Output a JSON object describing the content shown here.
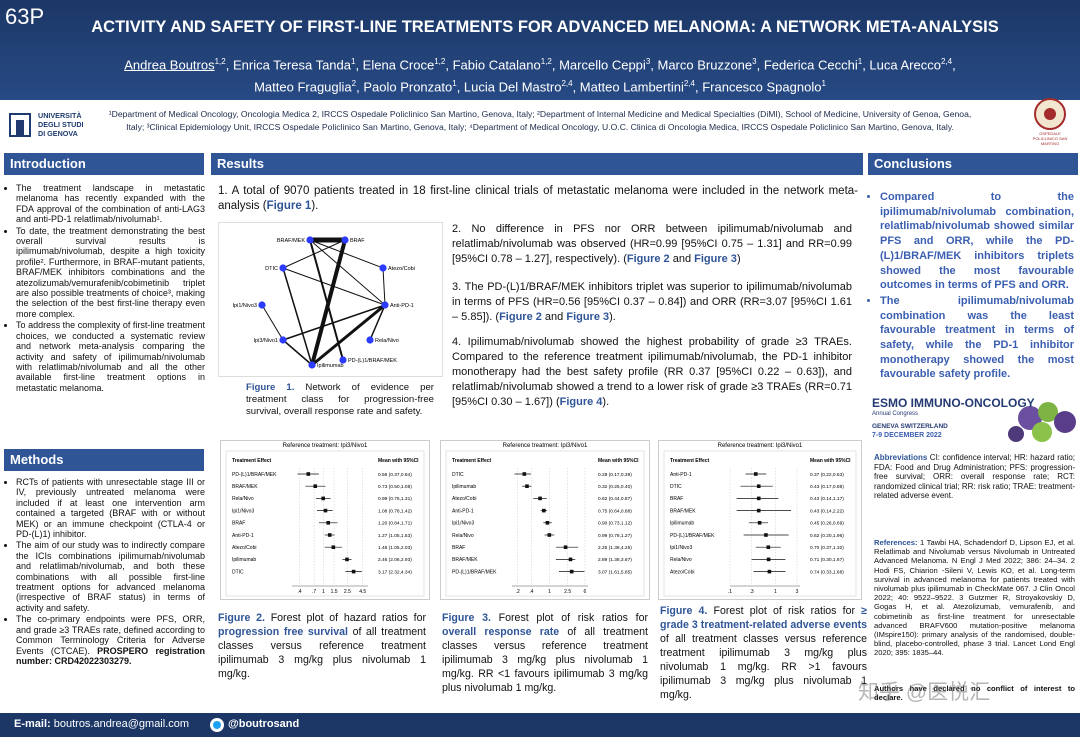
{
  "header": {
    "poster_id": "63P",
    "title": "ACTIVITY AND SAFETY OF FIRST-LINE TREATMENTS FOR ADVANCED MELANOMA: A NETWORK META-ANALYSIS",
    "authors": [
      [
        {
          "text": "Andrea Boutros",
          "u": true
        },
        {
          "text": "1,2",
          "sup": true
        },
        {
          "text": ", Enrica Teresa Tanda"
        },
        {
          "text": "1",
          "sup": true
        },
        {
          "text": ", Elena Croce"
        },
        {
          "text": "1,2",
          "sup": true
        },
        {
          "text": ", Fabio Catalano"
        },
        {
          "text": "1,2",
          "sup": true
        },
        {
          "text": ", Marcello Ceppi"
        },
        {
          "text": "3",
          "sup": true
        },
        {
          "text": ", Marco Bruzzone"
        },
        {
          "text": "3",
          "sup": true
        },
        {
          "text": ", Federica Cecchi"
        },
        {
          "text": "1",
          "sup": true
        },
        {
          "text": ", Luca Arecco"
        },
        {
          "text": "2,4",
          "sup": true
        },
        {
          "text": ","
        }
      ],
      [
        {
          "text": "Matteo Fraguglia"
        },
        {
          "text": "2",
          "sup": true
        },
        {
          "text": ", Paolo Pronzato"
        },
        {
          "text": "1",
          "sup": true
        },
        {
          "text": ", Lucia Del Mastro"
        },
        {
          "text": "2,4",
          "sup": true
        },
        {
          "text": ", Matteo Lambertini"
        },
        {
          "text": "2,4",
          "sup": true
        },
        {
          "text": ", Francesco Spagnolo"
        },
        {
          "text": "1",
          "sup": true
        }
      ]
    ],
    "affiliations": "¹Department of Medical Oncology, Oncologia Medica 2, IRCCS Ospedale Policlinico San Martino, Genova, Italy; ²Department of Internal Medicine and Medical Specialties (DiMI), School of Medicine, University of Genoa, Genoa, Italy; ³Clinical Epidemiology Unit, IRCCS Ospedale Policlinico San Martino, Genova, Italy; ⁴Department of Medical Oncology, U.O.C. Clinica di Oncologia Medica, IRCCS Ospedale Policlinico San Martino, Genova, Italy.",
    "university_logo": [
      "UNIVERSITÀ",
      "DEGLI STUDI",
      "DI GENOVA"
    ],
    "hospital_logo": "OSPEDALE POLICLINICO SAN MARTINO"
  },
  "introduction": {
    "heading": "Introduction",
    "bullets": [
      [
        {
          "text": "The treatment landscape in metastatic melanoma has recently expanded with the FDA approval of the combination of anti-LAG3 and anti-PD-1 relatlimab/nivolumab¹."
        }
      ],
      [
        {
          "text": "To date, the treatment demonstrating the best overall survival results is ipilimumab/nivolumab, despite a high toxicity profile². Furthermore, in BRAF-mutant patients, BRAF/MEK inhibitors combinations and the atezolizumab/vemurafenib/cobimetinib triplet are also possible treatments of choice³, making the selection of the best first-line therapy even more complex."
        }
      ],
      [
        {
          "text": "To address the complexity of first-line treatment choices, we conducted a systematic review and network meta-analysis comparing the activity and safety of ipilimumab/nivolumab with relatlimab/nivolumab and all the other available first-line treatment options in metastatic melanoma."
        }
      ]
    ]
  },
  "methods": {
    "heading": "Methods",
    "bullets": [
      [
        {
          "text": "RCTs of patients with unresectable stage III or IV, previously untreated melanoma were included if at least one intervention arm contained a targeted (BRAF with or without MEK) or an immune checkpoint (CTLA-4 or PD-(L)1) inhibitor."
        }
      ],
      [
        {
          "text": "The aim of our study was to indirectly compare the ICIs combinations ipilimumab/nivolumab and relatlimab/nivolumab, and both these combinations with all possible first-line treatment options for advanced melanoma (irrespective of BRAF status) in terms of activity and safety."
        }
      ],
      [
        {
          "text": "The co-primary endpoints were PFS, ORR, and grade ≥3 TRAEs rate, defined according to Common Terminology Criteria for Adverse Events (CTCAE). "
        },
        {
          "text": "PROSPERO registration number: CRD42022303279.",
          "bold": true
        }
      ]
    ]
  },
  "results": {
    "heading": "Results",
    "paragraphs": [
      [
        {
          "text": "1. A total of 9070 patients treated in 18 first-line clinical trials of metastatic melanoma were included in the network meta-analysis ("
        },
        {
          "text": "Figure 1",
          "em": true
        },
        {
          "text": ")."
        }
      ],
      [
        {
          "text": "2. No difference in PFS nor ORR between ipilimumab/nivolumab and relatlimab/nivolumab was observed (HR=0.99 [95%CI 0.75 – 1.31] and RR=0.99 [95%CI 0.78 – 1.27], respectively). ("
        },
        {
          "text": "Figure 2",
          "em": true
        },
        {
          "text": " and "
        },
        {
          "text": "Figure 3",
          "em": true
        },
        {
          "text": ")"
        }
      ],
      [
        {
          "text": "3. The PD-(L)1/BRAF/MEK inhibitors triplet was superior to ipilimumab/nivolumab in terms of PFS (HR=0.56 [95%CI 0.37 – 0.84]) and ORR (RR=3.07 [95%CI 1.61 – 5.85]). ("
        },
        {
          "text": "Figure 2",
          "em": true
        },
        {
          "text": " and "
        },
        {
          "text": "Figure 3",
          "em": true
        },
        {
          "text": ")."
        }
      ],
      [
        {
          "text": "4. Ipilimumab/nivolumab showed the highest probability of grade ≥3 TRAEs. Compared to the reference treatment ipilimumab/nivolumab, the PD-1 inhibitor monotherapy had the best safety profile (RR 0.37 [95%CI 0.22 – 0.63]), and relatlimab/nivolumab showed a trend to a lower risk of grade ≥3 TRAEs (RR=0.71 [95%CI 0.30 – 1.67]) ("
        },
        {
          "text": "Figure 4",
          "em": true
        },
        {
          "text": ")."
        }
      ]
    ],
    "network": {
      "nodes": [
        "BRAF/MEK",
        "BRAF",
        "DTIC",
        "Atezo/Cobi",
        "Anti-PD-1",
        "Ipi1/Nivo3",
        "Rela/Nivo",
        "Ipi3/Nivo1",
        "Ipilimumab",
        "PD-(L)1/BRAF/MEK"
      ],
      "caption": [
        {
          "text": "Figure 1.",
          "em": true
        },
        {
          "text": " Network of evidence per treatment class for progression-free survival, overall response rate and safety."
        }
      ]
    },
    "forest_plots": [
      {
        "type": "forest",
        "reference": "Reference treatment: Ipi3/Nivo1",
        "label_header": "Treatment Effect",
        "ci_header": "Mean with 95%CI",
        "log": true,
        "xlim": [
          0.3,
          5.5
        ],
        "xticks": [
          {
            "value": 0.4,
            "label": ".4"
          },
          {
            "value": 0.7,
            "label": ".7"
          },
          1,
          1.5,
          2.5,
          4.5
        ],
        "rows": [
          {
            "label": "PD-(L)1/BRAF/MEK",
            "value": 0.56,
            "lo": 0.37,
            "hi": 0.84,
            "value_label": "0.56 (0.37,0.84)"
          },
          {
            "label": "BRAF/MEK",
            "value": 0.73,
            "lo": 0.5,
            "hi": 1.08,
            "value_label": "0.73 (0.50,1.08)"
          },
          {
            "label": "Rela/Nivo",
            "value": 0.99,
            "lo": 0.75,
            "hi": 1.31,
            "value_label": "0.99 (0.75,1.31)"
          },
          {
            "label": "Ipi1/Nivo3",
            "value": 1.08,
            "lo": 0.78,
            "hi": 1.42,
            "value_label": "1.08 (0.78,1.42)"
          },
          {
            "label": "BRAF",
            "value": 1.2,
            "lo": 0.84,
            "hi": 1.71,
            "value_label": "1.20 (0.84,1.71)"
          },
          {
            "label": "Anti-PD-1",
            "value": 1.27,
            "lo": 1.05,
            "hi": 1.53,
            "value_label": "1.27 (1.05,1.53)"
          },
          {
            "label": "Atezo/Cobi",
            "value": 1.46,
            "lo": 1.05,
            "hi": 2.03,
            "value_label": "1.46 (1.05,2.03)"
          },
          {
            "label": "Ipilimumab",
            "value": 2.46,
            "lo": 2.06,
            "hi": 2.93,
            "value_label": "2.46 (2.06,2.93)"
          },
          {
            "label": "DTIC",
            "value": 3.17,
            "lo": 2.32,
            "hi": 4.34,
            "value_label": "3.17 (2.32,4.34)"
          }
        ],
        "caption": [
          {
            "text": "Figure 2.",
            "em": true
          },
          {
            "text": " Forest plot of hazard ratios for "
          },
          {
            "text": "progression free survival",
            "em": true
          },
          {
            "text": " of all treatment classes versus reference treatment ipilimumab 3 mg/kg plus nivolumab 1 mg/kg."
          }
        ]
      },
      {
        "type": "forest",
        "reference": "Reference treatment: Ipi3/Nivo1",
        "label_header": "Treatment Effect",
        "ci_header": "Mean with 95%CI",
        "log": true,
        "xlim": [
          0.15,
          7
        ],
        "xticks": [
          {
            "value": 0.2,
            "label": ".2"
          },
          {
            "value": 0.4,
            "label": ".4"
          },
          1,
          2.5,
          6
        ],
        "rows": [
          {
            "label": "DTIC",
            "value": 0.28,
            "lo": 0.17,
            "hi": 0.39,
            "value_label": "0.28 (0.17,0.39)"
          },
          {
            "label": "Ipilimumab",
            "value": 0.32,
            "lo": 0.25,
            "hi": 0.4,
            "value_label": "0.32 (0.25,0.40)"
          },
          {
            "label": "Atezo/Cobi",
            "value": 0.62,
            "lo": 0.44,
            "hi": 0.87,
            "value_label": "0.62 (0.44,0.87)"
          },
          {
            "label": "Anti-PD-1",
            "value": 0.75,
            "lo": 0.64,
            "hi": 0.88,
            "value_label": "0.75 (0.64,0.88)"
          },
          {
            "label": "Ipi1/Nivo3",
            "value": 0.9,
            "lo": 0.73,
            "hi": 1.12,
            "value_label": "0.90 (0.73,1.12)"
          },
          {
            "label": "Rela/Nivo",
            "value": 0.99,
            "lo": 0.78,
            "hi": 1.27,
            "value_label": "0.99 (0.78,1.27)"
          },
          {
            "label": "BRAF",
            "value": 2.25,
            "lo": 1.38,
            "hi": 4.25,
            "value_label": "2.25 (1.38,4.25)"
          },
          {
            "label": "BRAF/MEK",
            "value": 2.89,
            "lo": 1.38,
            "hi": 3.67,
            "value_label": "2.89 (1.38,3.67)"
          },
          {
            "label": "PD-(L)1/BRAF/MEK",
            "value": 3.07,
            "lo": 1.61,
            "hi": 5.85,
            "value_label": "3.07 (1.61,5.85)"
          }
        ],
        "caption": [
          {
            "text": "Figure 3.",
            "em": true
          },
          {
            "text": " Forest plot of risk ratios for "
          },
          {
            "text": "overall response rate",
            "em": true
          },
          {
            "text": " of all treatment classes versus reference treatment ipilimumab 3 mg/kg plus nivolumab 1 mg/kg. RR <1 favours ipilimumab 3 mg/kg plus nivolumab 1 mg/kg."
          }
        ]
      },
      {
        "type": "forest",
        "reference": "Reference treatment: Ipi3/Nivo1",
        "label_header": "Treatment Effect",
        "ci_header": "Mean with 95%CI",
        "log": true,
        "xlim": [
          0.1,
          3.5
        ],
        "xticks": [
          {
            "value": 0.1,
            "label": ".1"
          },
          {
            "value": 0.3,
            "label": ".3"
          },
          1,
          3
        ],
        "rows": [
          {
            "label": "Anti-PD-1",
            "value": 0.37,
            "lo": 0.22,
            "hi": 0.63,
            "value_label": "0.37 (0.22,0.63)"
          },
          {
            "label": "DTIC",
            "value": 0.43,
            "lo": 0.17,
            "hi": 0.88,
            "value_label": "0.43 (0.17,0.88)"
          },
          {
            "label": "BRAF",
            "value": 0.43,
            "lo": 0.14,
            "hi": 1.17,
            "value_label": "0.43 (0.14,1.17)"
          },
          {
            "label": "BRAF/MEK",
            "value": 0.43,
            "lo": 0.14,
            "hi": 2.22,
            "value_label": "0.43 (0.14,2.22)"
          },
          {
            "label": "Ipilimumab",
            "value": 0.45,
            "lo": 0.26,
            "hi": 0.69,
            "value_label": "0.45 (0.26,0.69)"
          },
          {
            "label": "PD-(L)1/BRAF/MEK",
            "value": 0.62,
            "lo": 0.2,
            "hi": 1.96,
            "value_label": "0.62 (0.20,1.96)"
          },
          {
            "label": "Ipi1/Nivo3",
            "value": 0.7,
            "lo": 0.37,
            "hi": 1.32,
            "value_label": "0.70 (0.37,1.32)"
          },
          {
            "label": "Rela/Nivo",
            "value": 0.71,
            "lo": 0.3,
            "hi": 1.67,
            "value_label": "0.71 (0.30,1.67)"
          },
          {
            "label": "Atezo/Cobi",
            "value": 0.74,
            "lo": 0.33,
            "hi": 1.68,
            "value_label": "0.74 (0.33,1.68)"
          }
        ],
        "caption": [
          {
            "text": "Figure 4.",
            "em": true
          },
          {
            "text": " Forest plot of risk ratios for "
          },
          {
            "text": "≥ grade 3 treatment-related adverse events",
            "em": true
          },
          {
            "text": " of all treatment classes versus reference treatment ipilimumab 3 mg/kg plus nivolumab 1 mg/kg. RR >1 favours ipilimumab 3 mg/kg plus nivolumab 1 mg/kg."
          }
        ]
      }
    ]
  },
  "conclusions": {
    "heading": "Conclusions",
    "bullets": [
      [
        {
          "text": "Compared to the ipilimumab/nivolumab combination, relatlimab/nivolumab showed similar PFS and ORR, while the PD-(L)1/BRAF/MEK inhibitors triplets showed the most favourable outcomes in terms of PFS and ORR."
        }
      ],
      [
        {
          "text": "The ipilimumab/nivolumab combination was the least favourable treatment in terms of safety, while the PD-1 inhibitor monotherapy showed the most favourable safety profile."
        }
      ]
    ]
  },
  "congress": {
    "name": "ESMO IMMUNO-ONCOLOGY",
    "subtitle": "Annual Congress",
    "place": "GENEVA SWITZERLAND",
    "dates": "7-9 DECEMBER 2022"
  },
  "abbreviations": [
    {
      "text": "Abbreviations",
      "em": true
    },
    {
      "text": "  CI: confidence interval; HR: hazard ratio; FDA: Food and Drug Administration; PFS: progression-free survival; ORR: overall response rate; RCT: randomized clinical trial; RR: risk ratio; TRAE: treatment-related adverse event."
    }
  ],
  "references": [
    {
      "text": "References:",
      "em": true
    },
    {
      "text": " 1 Tawbi HA, Schadendorf D, Lipson EJ, et al. Relatlimab and Nivolumab versus Nivolumab in Untreated Advanced Melanoma. N Engl J Med 2022; 386: 24–34. 2 Hodi FS, Chiarion -Sileni V, Lewis KO, et al. Long-term survival in advanced melanoma for patients treated with nivolumab plus ipilimumab in CheckMate 067. J Clin Oncol 2022; 40: 9522–9522. 3 Gutzmer R, Stroyakovskiy D, Gogas H, et al. Atezolizumab, vemurafenib, and cobimetinib as first-line treatment for unresectable advanced BRAFV600 mutation-positive melanoma (IMspire150): primary analysis of the randomised, double-blind, placebo-controlled, phase 3 trial. Lancet Lond Engl 2020; 395: 1835–44."
    }
  ],
  "disclosure": "Authors have declared no conflict of interest to declare.",
  "watermark": "知乎 @医悦汇",
  "footer": {
    "email": [
      {
        "text": "E-mail:",
        "bold": true
      },
      {
        "text": " boutros.andrea@gmail.com"
      }
    ],
    "twitter": "@boutrosand"
  }
}
